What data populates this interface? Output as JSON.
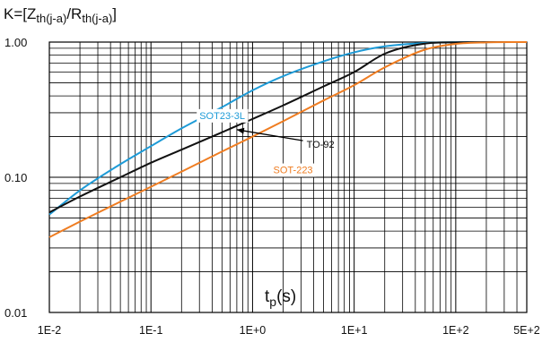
{
  "chart_data": {
    "type": "line",
    "title": "",
    "ylabel": {
      "prefix": "K=[Z",
      "sub1": "th(j-a)",
      "mid": "/R",
      "sub2": "th(j-a)",
      "suffix": "]"
    },
    "xlabel": {
      "main": "t",
      "sub": "p",
      "unit": "(s)"
    },
    "x_scale": "log",
    "y_scale": "log",
    "xlim": [
      0.01,
      500
    ],
    "ylim": [
      0.01,
      1.0
    ],
    "grid": true,
    "x_ticks": [
      {
        "value": 0.01,
        "label": "1E-2"
      },
      {
        "value": 0.1,
        "label": "1E-1"
      },
      {
        "value": 1,
        "label": "1E+0"
      },
      {
        "value": 10,
        "label": "1E+1"
      },
      {
        "value": 100,
        "label": "1E+2"
      },
      {
        "value": 500,
        "label": "5E+2"
      }
    ],
    "y_ticks": [
      {
        "value": 1.0,
        "label": "1.00"
      },
      {
        "value": 0.1,
        "label": "0.10"
      },
      {
        "value": 0.01,
        "label": "0.01"
      }
    ],
    "series": [
      {
        "name": "SOT23-3L",
        "color": "#1e9bd7",
        "points": [
          [
            0.01,
            0.053
          ],
          [
            0.02,
            0.08
          ],
          [
            0.05,
            0.125
          ],
          [
            0.1,
            0.17
          ],
          [
            0.2,
            0.23
          ],
          [
            0.5,
            0.33
          ],
          [
            1,
            0.44
          ],
          [
            2,
            0.56
          ],
          [
            5,
            0.72
          ],
          [
            10,
            0.84
          ],
          [
            20,
            0.93
          ],
          [
            50,
            0.985
          ],
          [
            100,
            0.998
          ],
          [
            500,
            1.0
          ]
        ]
      },
      {
        "name": "TO-92",
        "color": "#111111",
        "points": [
          [
            0.01,
            0.055
          ],
          [
            0.02,
            0.072
          ],
          [
            0.05,
            0.1
          ],
          [
            0.1,
            0.128
          ],
          [
            0.2,
            0.16
          ],
          [
            0.5,
            0.215
          ],
          [
            1,
            0.27
          ],
          [
            2,
            0.34
          ],
          [
            5,
            0.47
          ],
          [
            10,
            0.6
          ],
          [
            20,
            0.82
          ],
          [
            50,
            0.975
          ],
          [
            100,
            0.995
          ],
          [
            500,
            1.0
          ]
        ]
      },
      {
        "name": "SOT-223",
        "color": "#ef7d22",
        "points": [
          [
            0.01,
            0.036
          ],
          [
            0.02,
            0.047
          ],
          [
            0.05,
            0.066
          ],
          [
            0.1,
            0.085
          ],
          [
            0.2,
            0.11
          ],
          [
            0.5,
            0.155
          ],
          [
            1,
            0.2
          ],
          [
            2,
            0.26
          ],
          [
            5,
            0.37
          ],
          [
            10,
            0.48
          ],
          [
            20,
            0.65
          ],
          [
            50,
            0.88
          ],
          [
            100,
            0.97
          ],
          [
            200,
            0.995
          ],
          [
            500,
            1.0
          ]
        ]
      }
    ],
    "annotations": [
      {
        "series": "SOT23-3L",
        "text": "SOT23-3L",
        "x": 0.3,
        "y": 0.27,
        "color": "#1e9bd7",
        "arrow": false
      },
      {
        "series": "SOT-223",
        "text": "SOT-223",
        "x": 1.6,
        "y": 0.107,
        "color": "#ef7d22",
        "arrow": false
      },
      {
        "series": "TO-92",
        "text": "TO-92",
        "x": 3.4,
        "y": 0.165,
        "color": "#111111",
        "arrow": true,
        "arrow_to_x": 0.7,
        "arrow_to_y": 0.225
      }
    ]
  }
}
